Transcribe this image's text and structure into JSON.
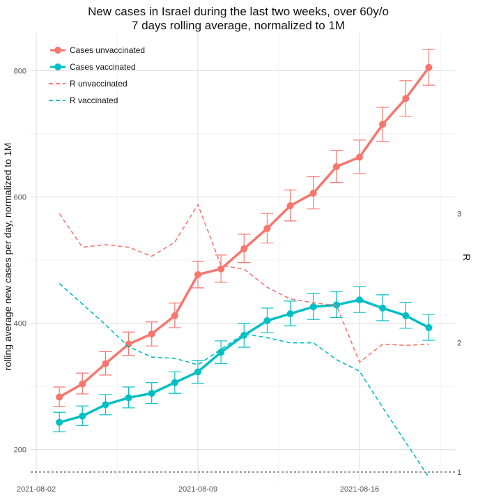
{
  "chart_data": {
    "type": "line",
    "title": "New cases in Israel during the last two weeks, over 60y/o",
    "subtitle": "7 days rolling average, normalized to 1M",
    "ylabel": "rolling average new cases per day, normalized to 1M",
    "ylabel_right": "R",
    "x": [
      "2021-08-03",
      "2021-08-04",
      "2021-08-05",
      "2021-08-06",
      "2021-08-07",
      "2021-08-08",
      "2021-08-09",
      "2021-08-10",
      "2021-08-11",
      "2021-08-12",
      "2021-08-13",
      "2021-08-14",
      "2021-08-15",
      "2021-08-16",
      "2021-08-17",
      "2021-08-18",
      "2021-08-19"
    ],
    "x_tick_labels": [
      "2021-08-02",
      "2021-08-09",
      "2021-08-16"
    ],
    "ylim": [
      150,
      860
    ],
    "yticks": [
      200,
      400,
      600,
      800
    ],
    "ylim_right": [
      0.93,
      4.4
    ],
    "yticks_right": [
      1,
      2,
      3
    ],
    "reference_line_right": 1,
    "grid": true,
    "legend_position": "top-left",
    "series": [
      {
        "name": "Cases unvaccinated",
        "color": "#F8766D",
        "style": "solid-points",
        "axis": "left",
        "values": [
          283,
          304,
          336,
          367,
          383,
          412,
          477,
          486,
          518,
          550,
          586,
          606,
          648,
          663,
          715,
          756,
          805
        ],
        "err_low": [
          268,
          288,
          318,
          349,
          364,
          393,
          456,
          465,
          496,
          527,
          562,
          581,
          623,
          637,
          688,
          728,
          777
        ],
        "err_high": [
          299,
          321,
          355,
          386,
          402,
          432,
          498,
          508,
          541,
          574,
          611,
          632,
          674,
          690,
          742,
          784,
          834
        ]
      },
      {
        "name": "Cases vaccinated",
        "color": "#00BFC4",
        "style": "solid-points",
        "axis": "left",
        "values": [
          243,
          253,
          271,
          282,
          289,
          306,
          323,
          354,
          381,
          404,
          415,
          426,
          429,
          437,
          424,
          412,
          393
        ],
        "err_low": [
          228,
          238,
          255,
          266,
          273,
          289,
          305,
          336,
          362,
          385,
          396,
          406,
          409,
          417,
          404,
          392,
          373
        ],
        "err_high": [
          259,
          269,
          287,
          299,
          306,
          323,
          341,
          372,
          400,
          424,
          435,
          447,
          450,
          458,
          445,
          433,
          414
        ]
      },
      {
        "name": "R unvaccinated",
        "color": "#F8766D",
        "style": "dashed",
        "axis": "right",
        "values": [
          3.0,
          2.74,
          2.76,
          2.74,
          2.67,
          2.78,
          3.07,
          2.6,
          2.57,
          2.43,
          2.34,
          2.31,
          2.29,
          1.85,
          1.99,
          1.98,
          1.99
        ]
      },
      {
        "name": "R vaccinated",
        "color": "#00BFC4",
        "style": "dashed",
        "axis": "right",
        "values": [
          2.46,
          2.3,
          2.14,
          1.97,
          1.89,
          1.88,
          1.83,
          1.95,
          2.07,
          2.04,
          2.0,
          2.0,
          1.87,
          1.78,
          1.5,
          1.23,
          0.96
        ]
      }
    ]
  }
}
